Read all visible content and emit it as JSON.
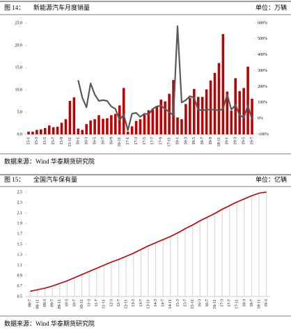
{
  "chart_data": [
    {
      "type": "bar",
      "figure_label": "图 14：",
      "title": "新能源汽车月度销量",
      "unit": "单位：万辆",
      "source": "数据来源：Wind 华泰期货研究院",
      "categories": [
        "15-1",
        null,
        "15-3",
        null,
        "15-5",
        null,
        "15-7",
        null,
        "15-9",
        null,
        "15-11",
        null,
        "16-1",
        null,
        "16-3",
        null,
        "16-5",
        null,
        "16-7",
        null,
        "16-9",
        null,
        "16-11",
        null,
        "17-1",
        null,
        "17-3",
        null,
        "17-5",
        null,
        "17-7",
        null,
        "17-9",
        null,
        "17-11",
        null,
        "18-1",
        null,
        "18-3",
        null,
        "18-5",
        null,
        "18-7",
        null,
        "18-9",
        null,
        "18-11",
        null,
        "19-1",
        null,
        "19-3",
        null,
        "19-5",
        null,
        "19-7"
      ],
      "series": [
        {
          "type": "bar",
          "color": "#c00000",
          "values": [
            0.6,
            0.6,
            1.0,
            1.1,
            1.4,
            2.0,
            1.6,
            1.7,
            2.6,
            3.4,
            7.5,
            8.3,
            1.3,
            1.0,
            2.3,
            3.1,
            3.4,
            4.3,
            3.5,
            3.6,
            4.3,
            4.6,
            6.5,
            10.4,
            0.6,
            1.8,
            3.0,
            3.4,
            4.4,
            5.4,
            5.6,
            6.4,
            7.8,
            7.4,
            9.1,
            12.2,
            3.8,
            3.4,
            6.8,
            8.2,
            10.2,
            8.4,
            8.4,
            10.1,
            12.1,
            13.8,
            16.0,
            22.5,
            9.6,
            5.3,
            12.6,
            9.7,
            10.4,
            15.2,
            8.0
          ]
        },
        {
          "type": "line",
          "axis": "y2",
          "color": "#595959",
          "values": [
            null,
            null,
            null,
            null,
            null,
            null,
            null,
            null,
            null,
            null,
            null,
            null,
            240,
            130,
            70,
            220,
            150,
            110,
            115,
            110,
            75,
            60,
            -10,
            25,
            -75,
            30,
            35,
            10,
            30,
            25,
            60,
            75,
            80,
            60,
            40,
            20,
            580,
            100,
            115,
            140,
            130,
            55,
            50,
            55,
            55,
            55,
            50,
            60,
            150,
            55,
            85,
            20,
            5,
            80,
            -5
          ]
        }
      ],
      "ylim": [
        0,
        25
      ],
      "yticks": [
        {
          "value": 0,
          "label": "0.0"
        },
        {
          "value": 5,
          "label": "5.0"
        },
        {
          "value": 10,
          "label": "10.0"
        },
        {
          "value": 15,
          "label": "15.0"
        },
        {
          "value": 20,
          "label": "20.0"
        },
        {
          "value": 25,
          "label": "25.0"
        }
      ],
      "y2lim": [
        -100,
        600
      ],
      "y2ticks": [
        {
          "value": -100,
          "label": "-100%"
        },
        {
          "value": 0,
          "label": "0%"
        },
        {
          "value": 100,
          "label": "100%"
        },
        {
          "value": 200,
          "label": "200%"
        },
        {
          "value": 300,
          "label": "300%"
        },
        {
          "value": 400,
          "label": "400%"
        },
        {
          "value": 500,
          "label": "500%"
        },
        {
          "value": 600,
          "label": "600%"
        }
      ]
    },
    {
      "type": "line",
      "figure_label": "图 15：",
      "title": "全国汽车保有量",
      "unit": "单位：亿辆",
      "source": "数据来源：Wind 华泰期货研究院",
      "categories": [
        "08-7",
        "08-11",
        "09-3",
        "09-7",
        "09-11",
        "10-3",
        "10-7",
        "10-11",
        "11-3",
        "11-7",
        "11-11",
        "12-3",
        "12-7",
        "12-11",
        "13-3",
        "13-7",
        "13-11",
        "14-3",
        "14-7",
        "14-11",
        "15-3",
        "15-7",
        "15-11",
        "16-3",
        "16-7",
        "16-11",
        "17-3",
        "17-7",
        "17-11",
        "18-3",
        "18-7",
        "18-11",
        "19-3"
      ],
      "drop_lines": true,
      "series": [
        {
          "type": "line",
          "color": "#c00000",
          "values": [
            0.6,
            0.63,
            0.66,
            0.7,
            0.75,
            0.8,
            0.86,
            0.92,
            0.98,
            1.04,
            1.1,
            1.16,
            1.21,
            1.27,
            1.33,
            1.4,
            1.47,
            1.53,
            1.59,
            1.65,
            1.72,
            1.8,
            1.87,
            1.95,
            2.02,
            2.09,
            2.17,
            2.24,
            2.31,
            2.37,
            2.43,
            2.48,
            2.5
          ]
        }
      ],
      "ylim": [
        0.5,
        2.5
      ],
      "yticks": [
        0.5,
        0.7,
        0.9,
        1.1,
        1.3,
        1.5,
        1.7,
        1.9,
        2.1,
        2.3,
        2.5
      ]
    }
  ]
}
